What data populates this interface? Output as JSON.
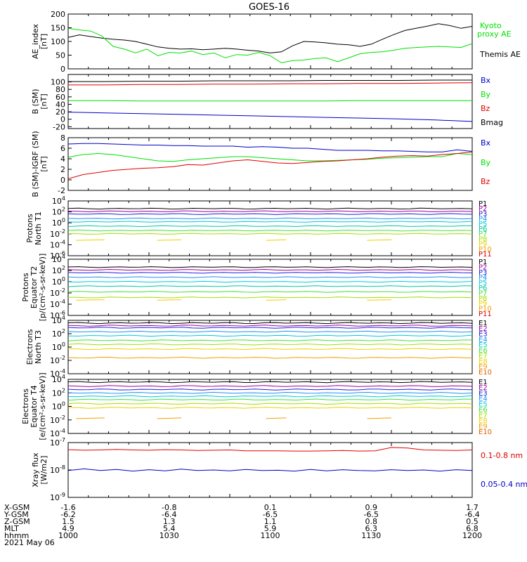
{
  "title": "GOES-16",
  "colors": {
    "black": "#000000",
    "red": "#e00000",
    "green": "#00e000",
    "blue": "#0000c8",
    "p_colors": [
      "#000000",
      "#a000a0",
      "#2020e0",
      "#2090f0",
      "#00c8e0",
      "#00c8a0",
      "#40e040",
      "#a0e000",
      "#f0d000",
      "#f0a000",
      "#e00000"
    ],
    "e_colors": [
      "#000000",
      "#a000a0",
      "#2020e0",
      "#2090f0",
      "#00c8e0",
      "#40e040",
      "#a0e000",
      "#f0d000",
      "#f0a000",
      "#e06000",
      "#e00000"
    ]
  },
  "footer": {
    "row_labels": [
      "X-GSM",
      "Y-GSM",
      "Z-GSM",
      "MLT",
      "hhmm"
    ],
    "date": "2021 May 06",
    "columns": [
      [
        "-1.6",
        "-6.2",
        "1.5",
        "4.9",
        "1000"
      ],
      [
        "-0.8",
        "-6.4",
        "1.3",
        "5.4",
        "1030"
      ],
      [
        "0.1",
        "-6.5",
        "1.1",
        "5.9",
        "1100"
      ],
      [
        "0.9",
        "-6.5",
        "0.8",
        "6.3",
        "1130"
      ],
      [
        "1.7",
        "-6.4",
        "0.5",
        "6.8",
        "1200"
      ]
    ]
  },
  "chart_data": [
    {
      "type": "line",
      "ylabel": "AE_index [nT]",
      "ylim": [
        0,
        200
      ],
      "yticks": [
        "0",
        "50",
        "100",
        "150",
        "200"
      ],
      "legend": [
        {
          "text": "Kyoto proxy AE",
          "color": "#00e000"
        },
        {
          "text": "Themis AE",
          "color": "#000000"
        }
      ],
      "x_range": [
        "1000",
        "1200"
      ],
      "series": [
        {
          "name": "Themis AE",
          "color": "#000000",
          "values": [
            115,
            124,
            118,
            112,
            108,
            105,
            100,
            90,
            80,
            75,
            72,
            73,
            70,
            72,
            75,
            72,
            68,
            65,
            58,
            62,
            84,
            100,
            98,
            95,
            90,
            88,
            82,
            90,
            108,
            125,
            140,
            148,
            156,
            165,
            158,
            148,
            155
          ]
        },
        {
          "name": "Kyoto proxy AE",
          "color": "#00e000",
          "values": [
            148,
            142,
            138,
            120,
            82,
            72,
            58,
            72,
            48,
            60,
            58,
            65,
            52,
            58,
            40,
            52,
            50,
            60,
            48,
            22,
            30,
            32,
            38,
            40,
            26,
            40,
            55,
            60,
            62,
            68,
            75,
            78,
            80,
            82,
            80,
            78,
            92
          ]
        }
      ]
    },
    {
      "type": "line",
      "ylabel": "B (SM) [nT]",
      "ylim": [
        -25,
        120
      ],
      "yticks": [
        "-20",
        "0",
        "20",
        "40",
        "60",
        "80",
        "100"
      ],
      "legend": [
        {
          "text": "Bx",
          "color": "#0000c8"
        },
        {
          "text": "By",
          "color": "#00e000"
        },
        {
          "text": "Bz",
          "color": "#e00000"
        },
        {
          "text": "Bmag",
          "color": "#000000"
        }
      ],
      "series": [
        {
          "name": "Bmag",
          "color": "#000000",
          "values": [
            101,
            101,
            102,
            102,
            103,
            103,
            103,
            104,
            104,
            104,
            105,
            105
          ]
        },
        {
          "name": "Bz",
          "color": "#e00000",
          "values": [
            92,
            92,
            93,
            93,
            94,
            94,
            95,
            95,
            96,
            96,
            97,
            98
          ]
        },
        {
          "name": "By",
          "color": "#00e000",
          "values": [
            50,
            50,
            49,
            49,
            49,
            49,
            49,
            49,
            50,
            50,
            50,
            50
          ]
        },
        {
          "name": "Bx",
          "color": "#0000c8",
          "values": [
            19,
            17,
            15,
            13,
            11,
            9,
            7,
            5,
            3,
            1,
            -2,
            -6
          ]
        }
      ]
    },
    {
      "type": "line",
      "ylabel": "B (SM)-IGRF (SM) [nT]",
      "ylim": [
        -2,
        8
      ],
      "yticks": [
        "-2",
        "0",
        "2",
        "4",
        "6",
        "8"
      ],
      "legend": [
        {
          "text": "Bx",
          "color": "#0000c8"
        },
        {
          "text": "By",
          "color": "#00e000"
        },
        {
          "text": "Bz",
          "color": "#e00000"
        }
      ],
      "series": [
        {
          "name": "Bx",
          "color": "#0000c8",
          "values": [
            6.8,
            6.9,
            6.9,
            6.8,
            6.7,
            6.6,
            6.6,
            6.5,
            6.5,
            6.4,
            6.4,
            6.4,
            6.2,
            6.3,
            6.2,
            6.0,
            6.0,
            5.8,
            5.6,
            5.6,
            5.6,
            5.5,
            5.5,
            5.4,
            5.3,
            5.3,
            5.7,
            5.4
          ]
        },
        {
          "name": "By",
          "color": "#00e000",
          "values": [
            4.3,
            4.8,
            5.0,
            4.8,
            4.4,
            4.0,
            3.6,
            3.5,
            3.8,
            4.0,
            4.2,
            4.4,
            4.4,
            4.2,
            4.0,
            3.8,
            3.6,
            3.6,
            3.7,
            3.8,
            3.9,
            4.1,
            4.2,
            4.3,
            4.4,
            4.4,
            5.0,
            4.8
          ]
        },
        {
          "name": "Bz",
          "color": "#e00000",
          "values": [
            0.2,
            1.0,
            1.4,
            1.8,
            2.0,
            2.2,
            2.3,
            2.5,
            2.9,
            2.8,
            3.2,
            3.6,
            3.8,
            3.5,
            3.2,
            3.1,
            3.3,
            3.5,
            3.6,
            3.8,
            4.0,
            4.3,
            4.5,
            4.6,
            4.5,
            4.8,
            5.0,
            5.3
          ]
        }
      ]
    },
    {
      "type": "line",
      "ylabel": "Protons North T1",
      "ylim_exp": [
        -6,
        4
      ],
      "yticks_exp": [
        4,
        2,
        0,
        -2,
        -4,
        -6
      ],
      "channels": [
        "P1",
        "P2",
        "P3",
        "P4",
        "P5",
        "P6",
        "P7",
        "P8",
        "P9",
        "P10",
        "P11"
      ],
      "levels_exp": [
        2.6,
        2.1,
        1.6,
        0.8,
        0.2,
        -0.6,
        -1.4,
        -2.0,
        -3.2
      ]
    },
    {
      "type": "line",
      "ylabel": "Protons Equator T2 [p/(cm²-s-sr-keV)]",
      "ylim_exp": [
        -6,
        4
      ],
      "yticks_exp": [
        4,
        2,
        0,
        -2,
        -4,
        -6
      ],
      "channels": [
        "P1",
        "P2",
        "P3",
        "P4",
        "P5",
        "P6",
        "P7",
        "P8",
        "P9",
        "P10",
        "P11"
      ],
      "levels_exp": [
        2.6,
        2.1,
        1.6,
        0.8,
        0.0,
        -0.8,
        -1.8,
        -2.8,
        -3.3
      ]
    },
    {
      "type": "line",
      "ylabel": "Electrons North T3",
      "ylim_exp": [
        -4,
        4
      ],
      "yticks_exp": [
        4,
        2,
        0,
        -2,
        -4
      ],
      "channels": [
        "E1",
        "E2",
        "E3",
        "E4",
        "E5",
        "E6",
        "E7",
        "E8",
        "E9",
        "E10"
      ],
      "levels_exp": [
        3.6,
        3.2,
        2.9,
        2.3,
        1.7,
        1.0,
        0.4,
        -0.3,
        -1.6
      ]
    },
    {
      "type": "line",
      "ylabel": "Electrons Equator T4 [e/(cm²-s-sr-keV)]",
      "ylim_exp": [
        -4,
        4
      ],
      "yticks_exp": [
        4,
        2,
        0,
        -2,
        -4
      ],
      "channels": [
        "E1",
        "E2",
        "E3",
        "E4",
        "E5",
        "E6",
        "E7",
        "E8",
        "E9",
        "E10"
      ],
      "levels_exp": [
        3.6,
        3.0,
        2.5,
        2.0,
        1.5,
        1.0,
        0.4,
        -0.2,
        -1.8
      ]
    },
    {
      "type": "line",
      "ylabel": "Xray flux [W/m2]",
      "ylim_exp": [
        -9,
        -7
      ],
      "yticks_exp": [
        -7,
        -8,
        -9
      ],
      "legend": [
        {
          "text": "0.1-0.8 nm",
          "color": "#e00000"
        },
        {
          "text": "0.05-0.4 nm",
          "color": "#0000c8"
        }
      ],
      "series": [
        {
          "name": "0.1-0.8 nm",
          "color": "#e00000",
          "values_exp": [
            -7.26,
            -7.28,
            -7.27,
            -7.25,
            -7.27,
            -7.28,
            -7.26,
            -7.27,
            -7.29,
            -7.28,
            -7.27,
            -7.3,
            -7.3,
            -7.3,
            -7.31,
            -7.31,
            -7.3,
            -7.29,
            -7.31,
            -7.3,
            -7.18,
            -7.2,
            -7.27,
            -7.28,
            -7.29,
            -7.27
          ]
        },
        {
          "name": "0.05-0.4 nm",
          "color": "#0000c8",
          "values_exp": [
            -8.02,
            -7.96,
            -8.02,
            -7.98,
            -8.04,
            -7.99,
            -8.03,
            -7.97,
            -8.02,
            -8.0,
            -8.03,
            -7.98,
            -8.02,
            -8.01,
            -8.04,
            -7.98,
            -8.03,
            -7.99,
            -8.02,
            -8.03,
            -7.99,
            -8.02,
            -8.0,
            -8.04,
            -7.99,
            -8.02
          ]
        }
      ]
    }
  ]
}
